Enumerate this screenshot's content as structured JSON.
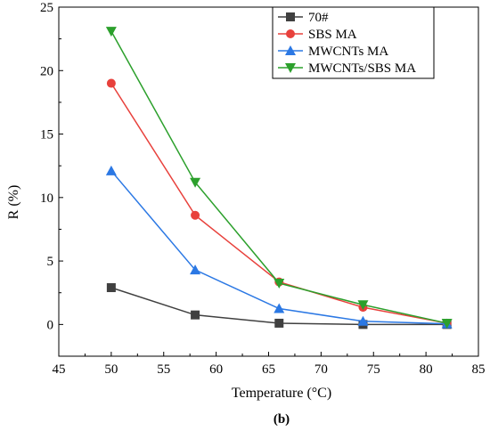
{
  "chart_data": {
    "type": "line",
    "title": "",
    "xlabel": "Temperature (°C)",
    "ylabel": "R (%)",
    "caption": "(b)",
    "xlim": [
      45,
      85
    ],
    "ylim": [
      -2.5,
      25
    ],
    "xticks": [
      45,
      50,
      55,
      60,
      65,
      70,
      75,
      80,
      85
    ],
    "yticks": [
      0,
      5,
      10,
      15,
      20,
      25
    ],
    "grid": false,
    "legend_position": "top-right",
    "x": [
      50,
      58,
      66,
      74,
      82
    ],
    "series": [
      {
        "name": "70#",
        "color": "#404040",
        "marker": "square",
        "values": [
          2.9,
          0.75,
          0.1,
          0.0,
          0.0
        ]
      },
      {
        "name": "SBS MA",
        "color": "#e8413c",
        "marker": "circle",
        "values": [
          19.0,
          8.6,
          3.35,
          1.35,
          0.1
        ]
      },
      {
        "name": "MWCNTs MA",
        "color": "#2b78e4",
        "marker": "triangle-up",
        "values": [
          12.1,
          4.3,
          1.25,
          0.25,
          0.05
        ]
      },
      {
        "name": "MWCNTs/SBS MA",
        "color": "#2ca02c",
        "marker": "triangle-down",
        "values": [
          23.1,
          11.2,
          3.25,
          1.55,
          0.1
        ]
      }
    ]
  }
}
